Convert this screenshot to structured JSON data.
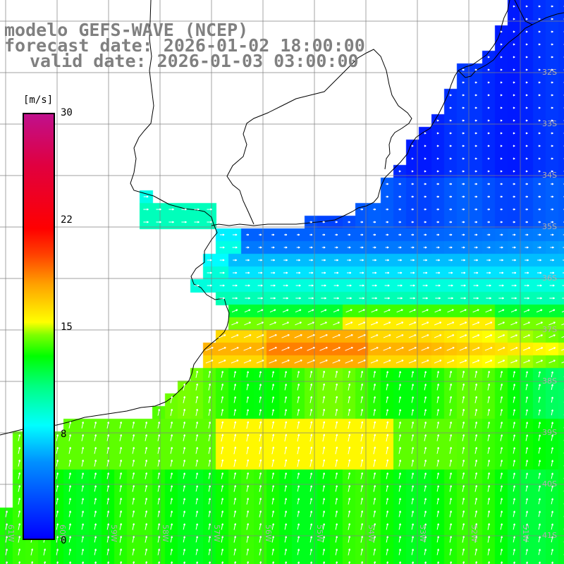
{
  "title": {
    "line1": "modelo GEFS-WAVE (NCEP)",
    "line2": "forecast date: 2026-01-02 18:00:00",
    "line3": "valid date: 2026-01-03 03:00:00"
  },
  "colorbar": {
    "unit": "[m/s]",
    "min": 0,
    "max": 30,
    "tick_labels": [
      "30",
      "22",
      "15",
      "8",
      "0"
    ],
    "tick_values": [
      30,
      22,
      15,
      8,
      0
    ],
    "colors": [
      "#0000ff",
      "#00ffff",
      "#00ff00",
      "#ffff00",
      "#ff0000",
      "#c0108c"
    ]
  },
  "map": {
    "variable": "wind speed",
    "lat_labels": [
      "32S",
      "33S",
      "34S",
      "35S",
      "36S",
      "37S",
      "38S",
      "39S",
      "40S",
      "41S"
    ],
    "lon_labels": [
      "61W",
      "60W",
      "59W",
      "58W",
      "57W",
      "56W",
      "55W",
      "54W",
      "53W",
      "52W",
      "51W"
    ],
    "land_color": "#ffffff",
    "grid_color": "#808080",
    "coast_color": "#000000",
    "arrow_color": "#ffffff"
  }
}
